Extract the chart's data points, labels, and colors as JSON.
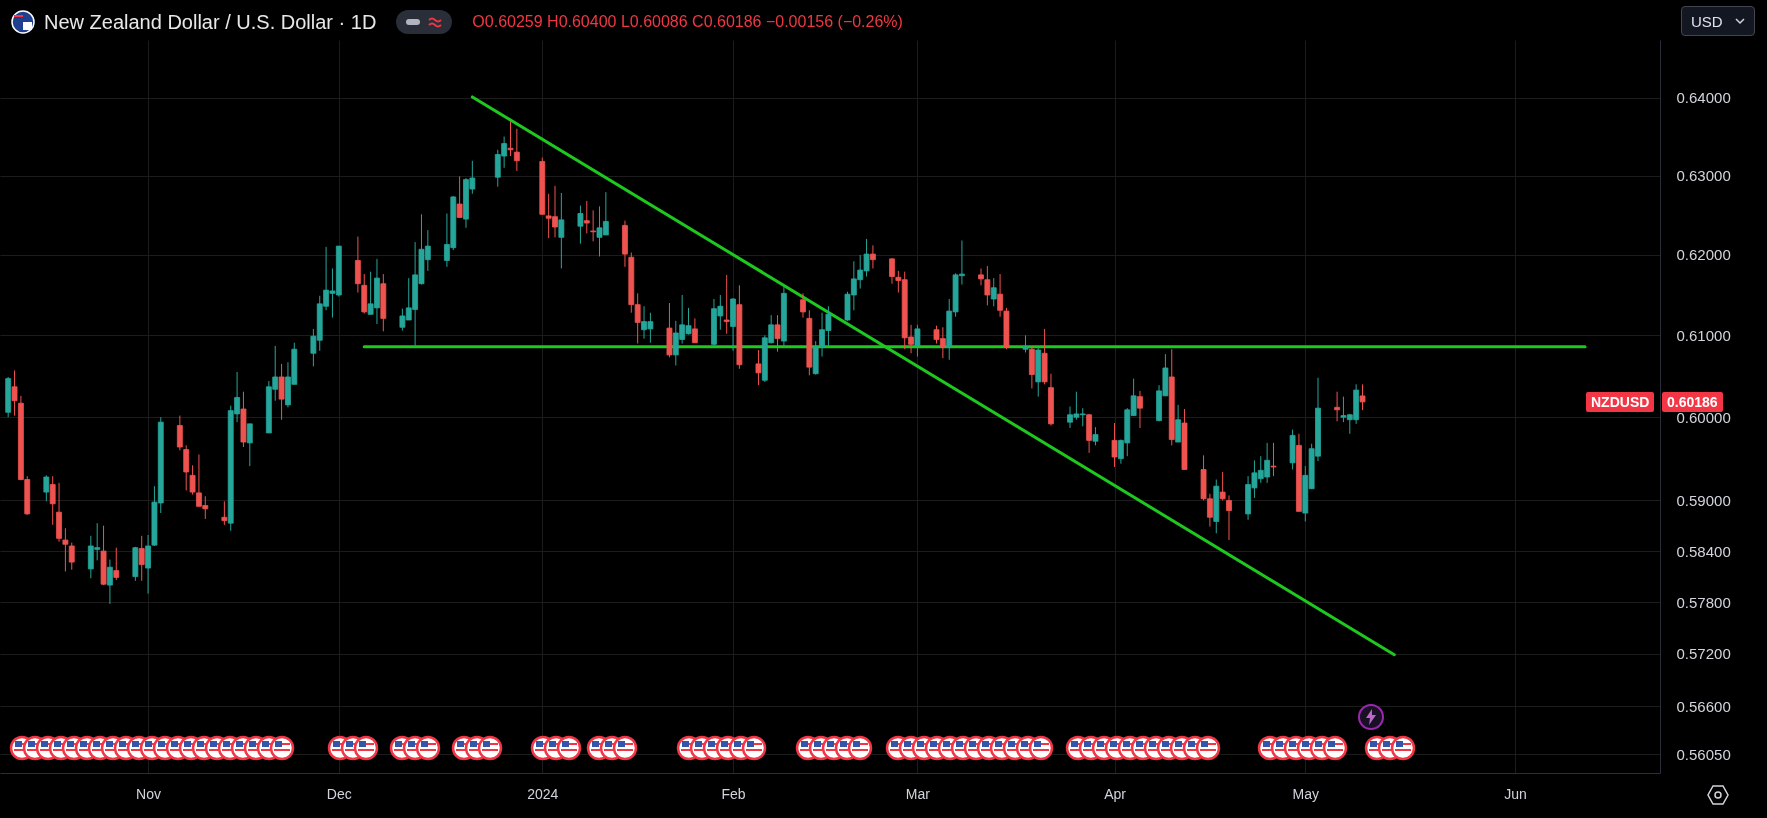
{
  "chart_data": {
    "type": "candlestick",
    "title": "New Zealand Dollar / U.S. Dollar · 1D",
    "subtitle": "O0.60259 H0.60400 L0.60086 C0.60186 −0.00156 (−0.26%)",
    "annotations": [
      "USD",
      "NZDUSD",
      "0.60186"
    ],
    "x": [
      "2023-10-10",
      "2023-10-11",
      "2023-10-12",
      "2023-10-13",
      "2023-10-16",
      "2023-10-17",
      "2023-10-18",
      "2023-10-19",
      "2023-10-20",
      "2023-10-23",
      "2023-10-24",
      "2023-10-25",
      "2023-10-26",
      "2023-10-27",
      "2023-10-30",
      "2023-10-31",
      "2023-11-01",
      "2023-11-02",
      "2023-11-03",
      "2023-11-06",
      "2023-11-07",
      "2023-11-08",
      "2023-11-09",
      "2023-11-10",
      "2023-11-13",
      "2023-11-14",
      "2023-11-15",
      "2023-11-16",
      "2023-11-17",
      "2023-11-20",
      "2023-11-21",
      "2023-11-22",
      "2023-11-23",
      "2023-11-24",
      "2023-11-27",
      "2023-11-28",
      "2023-11-29",
      "2023-11-30",
      "2023-12-01",
      "2023-12-04",
      "2023-12-05",
      "2023-12-06",
      "2023-12-07",
      "2023-12-08",
      "2023-12-11",
      "2023-12-12",
      "2023-12-13",
      "2023-12-14",
      "2023-12-15",
      "2023-12-18",
      "2023-12-19",
      "2023-12-20",
      "2023-12-21",
      "2023-12-22",
      "2023-12-26",
      "2023-12-27",
      "2023-12-28",
      "2023-12-29",
      "2024-01-02",
      "2024-01-03",
      "2024-01-04",
      "2024-01-05",
      "2024-01-08",
      "2024-01-09",
      "2024-01-10",
      "2024-01-11",
      "2024-01-12",
      "2024-01-15",
      "2024-01-16",
      "2024-01-17",
      "2024-01-18",
      "2024-01-19",
      "2024-01-22",
      "2024-01-23",
      "2024-01-24",
      "2024-01-25",
      "2024-01-26",
      "2024-01-29",
      "2024-01-30",
      "2024-01-31",
      "2024-02-01",
      "2024-02-02",
      "2024-02-05",
      "2024-02-06",
      "2024-02-07",
      "2024-02-08",
      "2024-02-09",
      "2024-02-12",
      "2024-02-13",
      "2024-02-14",
      "2024-02-15",
      "2024-02-16",
      "2024-02-19",
      "2024-02-20",
      "2024-02-21",
      "2024-02-22",
      "2024-02-23",
      "2024-02-26",
      "2024-02-27",
      "2024-02-28",
      "2024-02-29",
      "2024-03-01",
      "2024-03-04",
      "2024-03-05",
      "2024-03-06",
      "2024-03-07",
      "2024-03-08",
      "2024-03-11",
      "2024-03-12",
      "2024-03-13",
      "2024-03-14",
      "2024-03-15",
      "2024-03-18",
      "2024-03-19",
      "2024-03-20",
      "2024-03-21",
      "2024-03-22",
      "2024-03-25",
      "2024-03-26",
      "2024-03-27",
      "2024-03-28",
      "2024-03-29",
      "2024-04-01",
      "2024-04-02",
      "2024-04-03",
      "2024-04-04",
      "2024-04-05",
      "2024-04-08",
      "2024-04-09",
      "2024-04-10",
      "2024-04-11",
      "2024-04-12",
      "2024-04-15",
      "2024-04-16",
      "2024-04-17",
      "2024-04-18",
      "2024-04-19",
      "2024-04-22",
      "2024-04-23",
      "2024-04-24",
      "2024-04-25",
      "2024-04-26",
      "2024-04-29",
      "2024-04-30",
      "2024-05-01",
      "2024-05-02",
      "2024-05-03",
      "2024-05-06",
      "2024-05-07",
      "2024-05-08",
      "2024-05-09",
      "2024-05-10"
    ],
    "ohlc": [
      [
        0.6006,
        0.6049,
        0.6,
        0.6047
      ],
      [
        0.6037,
        0.6057,
        0.6002,
        0.602
      ],
      [
        0.6017,
        0.6026,
        0.5924,
        0.5925
      ],
      [
        0.5925,
        0.5929,
        0.5883,
        0.5884
      ],
      [
        0.591,
        0.593,
        0.5899,
        0.5928
      ],
      [
        0.5919,
        0.5929,
        0.5871,
        0.5896
      ],
      [
        0.5886,
        0.5921,
        0.5851,
        0.5855
      ],
      [
        0.5853,
        0.5867,
        0.5816,
        0.5848
      ],
      [
        0.5846,
        0.585,
        0.5818,
        0.5827
      ],
      [
        0.5819,
        0.5858,
        0.5808,
        0.5846
      ],
      [
        0.5842,
        0.5873,
        0.5829,
        0.5844
      ],
      [
        0.584,
        0.587,
        0.58,
        0.5801
      ],
      [
        0.58,
        0.583,
        0.5778,
        0.5821
      ],
      [
        0.5817,
        0.5844,
        0.5806,
        0.5809
      ],
      [
        0.581,
        0.5845,
        0.5805,
        0.5844
      ],
      [
        0.5843,
        0.5858,
        0.5805,
        0.5824
      ],
      [
        0.582,
        0.5859,
        0.579,
        0.5846
      ],
      [
        0.5847,
        0.5917,
        0.5846,
        0.5898
      ],
      [
        0.5897,
        0.6,
        0.5885,
        0.5994
      ],
      [
        0.599,
        0.6002,
        0.596,
        0.5964
      ],
      [
        0.5961,
        0.5966,
        0.5912,
        0.5934
      ],
      [
        0.593,
        0.5942,
        0.5907,
        0.591
      ],
      [
        0.5909,
        0.5955,
        0.5893,
        0.5893
      ],
      [
        0.5894,
        0.5905,
        0.5878,
        0.589
      ],
      [
        0.588,
        0.5899,
        0.5871,
        0.5876
      ],
      [
        0.5873,
        0.6014,
        0.5864,
        0.6008
      ],
      [
        0.6004,
        0.6055,
        0.5994,
        0.6024
      ],
      [
        0.601,
        0.6031,
        0.5964,
        0.597
      ],
      [
        0.5969,
        0.5992,
        0.5941,
        0.5992
      ],
      [
        0.5981,
        0.6044,
        0.5981,
        0.6037
      ],
      [
        0.6034,
        0.6087,
        0.602,
        0.6049
      ],
      [
        0.6049,
        0.6065,
        0.5997,
        0.6022
      ],
      [
        0.6015,
        0.6067,
        0.6012,
        0.6049
      ],
      [
        0.604,
        0.6091,
        0.604,
        0.6083
      ],
      [
        0.6078,
        0.6108,
        0.6062,
        0.6099
      ],
      [
        0.6094,
        0.6149,
        0.6081,
        0.6139
      ],
      [
        0.6136,
        0.621,
        0.6131,
        0.6156
      ],
      [
        0.6152,
        0.6183,
        0.6122,
        0.6155
      ],
      [
        0.615,
        0.6211,
        0.6148,
        0.6211
      ],
      [
        0.6193,
        0.6223,
        0.6153,
        0.6164
      ],
      [
        0.6162,
        0.6176,
        0.6127,
        0.6129
      ],
      [
        0.6126,
        0.6179,
        0.6126,
        0.6139
      ],
      [
        0.6134,
        0.6195,
        0.6114,
        0.6171
      ],
      [
        0.6164,
        0.6176,
        0.6105,
        0.6121
      ],
      [
        0.611,
        0.6133,
        0.6106,
        0.6124
      ],
      [
        0.6119,
        0.6171,
        0.6119,
        0.6134
      ],
      [
        0.6132,
        0.6216,
        0.6086,
        0.6175
      ],
      [
        0.6164,
        0.6251,
        0.6163,
        0.6207
      ],
      [
        0.6194,
        0.6231,
        0.618,
        0.6211
      ],
      [
        0.6193,
        0.6252,
        0.6185,
        0.6213
      ],
      [
        0.6209,
        0.6274,
        0.6206,
        0.6273
      ],
      [
        0.6264,
        0.6299,
        0.6247,
        0.6247
      ],
      [
        0.6245,
        0.6297,
        0.6234,
        0.6295
      ],
      [
        0.6283,
        0.6319,
        0.6277,
        0.6297
      ],
      [
        0.6298,
        0.6333,
        0.6286,
        0.6327
      ],
      [
        0.6325,
        0.635,
        0.631,
        0.6341
      ],
      [
        0.6335,
        0.637,
        0.6325,
        0.6333
      ],
      [
        0.633,
        0.636,
        0.6306,
        0.6319
      ],
      [
        0.6318,
        0.6323,
        0.6251,
        0.6251
      ],
      [
        0.6249,
        0.6277,
        0.6221,
        0.6246
      ],
      [
        0.6248,
        0.6287,
        0.6222,
        0.6235
      ],
      [
        0.6222,
        0.6278,
        0.6183,
        0.6244
      ],
      [
        0.6236,
        0.6262,
        0.6214,
        0.6252
      ],
      [
        0.6243,
        0.6268,
        0.6227,
        0.624
      ],
      [
        0.623,
        0.6256,
        0.6217,
        0.6229
      ],
      [
        0.6222,
        0.6261,
        0.6198,
        0.6234
      ],
      [
        0.6225,
        0.6279,
        0.6225,
        0.6242
      ],
      [
        0.6237,
        0.6243,
        0.6185,
        0.6201
      ],
      [
        0.6197,
        0.6203,
        0.6128,
        0.6138
      ],
      [
        0.6138,
        0.6152,
        0.609,
        0.6116
      ],
      [
        0.6107,
        0.6136,
        0.6096,
        0.6117
      ],
      [
        0.6108,
        0.6128,
        0.6091,
        0.6117
      ],
      [
        0.6109,
        0.614,
        0.6073,
        0.6076
      ],
      [
        0.6076,
        0.6118,
        0.6063,
        0.6103
      ],
      [
        0.6095,
        0.615,
        0.609,
        0.6113
      ],
      [
        0.6102,
        0.6134,
        0.6101,
        0.6112
      ],
      [
        0.6108,
        0.6121,
        0.6091,
        0.6091
      ],
      [
        0.6089,
        0.6145,
        0.6087,
        0.6133
      ],
      [
        0.6124,
        0.615,
        0.6107,
        0.6136
      ],
      [
        0.6119,
        0.6175,
        0.6102,
        0.6117
      ],
      [
        0.6111,
        0.6146,
        0.6081,
        0.6145
      ],
      [
        0.6138,
        0.6162,
        0.6059,
        0.6064
      ],
      [
        0.6065,
        0.6082,
        0.6039,
        0.6054
      ],
      [
        0.6045,
        0.61,
        0.6043,
        0.6097
      ],
      [
        0.6091,
        0.6125,
        0.609,
        0.6113
      ],
      [
        0.6113,
        0.6125,
        0.608,
        0.6096
      ],
      [
        0.6093,
        0.616,
        0.6086,
        0.6152
      ],
      [
        0.6144,
        0.6152,
        0.6122,
        0.6129
      ],
      [
        0.6121,
        0.6131,
        0.6051,
        0.6061
      ],
      [
        0.6053,
        0.6093,
        0.6052,
        0.6086
      ],
      [
        0.6086,
        0.6128,
        0.6074,
        0.6107
      ],
      [
        0.6106,
        0.6136,
        0.6087,
        0.6126
      ],
      [
        0.6119,
        0.6154,
        0.6118,
        0.6151
      ],
      [
        0.615,
        0.6192,
        0.6131,
        0.617
      ],
      [
        0.6169,
        0.62,
        0.6158,
        0.6181
      ],
      [
        0.618,
        0.622,
        0.6173,
        0.6201
      ],
      [
        0.6201,
        0.6212,
        0.6183,
        0.6194
      ],
      [
        0.6195,
        0.6196,
        0.6164,
        0.6173
      ],
      [
        0.6172,
        0.618,
        0.6153,
        0.6168
      ],
      [
        0.6169,
        0.6179,
        0.6083,
        0.6097
      ],
      [
        0.6098,
        0.6113,
        0.6078,
        0.6089
      ],
      [
        0.6087,
        0.6113,
        0.6074,
        0.6108
      ],
      [
        0.6107,
        0.6112,
        0.609,
        0.6095
      ],
      [
        0.6096,
        0.611,
        0.6072,
        0.6086
      ],
      [
        0.6086,
        0.6145,
        0.607,
        0.613
      ],
      [
        0.6129,
        0.6177,
        0.6123,
        0.6175
      ],
      [
        0.6174,
        0.6218,
        0.6163,
        0.6176
      ],
      [
        0.6175,
        0.6183,
        0.6162,
        0.617
      ],
      [
        0.6169,
        0.6186,
        0.6137,
        0.615
      ],
      [
        0.6145,
        0.6171,
        0.6136,
        0.6159
      ],
      [
        0.6151,
        0.6176,
        0.6123,
        0.6131
      ],
      [
        0.613,
        0.6134,
        0.6083,
        0.6085
      ],
      [
        0.6083,
        0.61,
        0.6079,
        0.6086
      ],
      [
        0.6083,
        0.6087,
        0.6035,
        0.6052
      ],
      [
        0.6043,
        0.6085,
        0.6025,
        0.6082
      ],
      [
        0.6078,
        0.6108,
        0.604,
        0.6043
      ],
      [
        0.6036,
        0.6053,
        0.599,
        0.5992
      ],
      [
        0.5994,
        0.6013,
        0.5987,
        0.6003
      ],
      [
        0.6,
        0.6031,
        0.5997,
        0.6004
      ],
      [
        0.6003,
        0.6011,
        0.5989,
        0.6004
      ],
      [
        0.6003,
        0.6004,
        0.5957,
        0.5972
      ],
      [
        0.5971,
        0.5988,
        0.5966,
        0.5979
      ],
      [
        0.5972,
        0.5993,
        0.594,
        0.5952
      ],
      [
        0.595,
        0.5973,
        0.5944,
        0.5972
      ],
      [
        0.5969,
        0.6011,
        0.5953,
        0.6009
      ],
      [
        0.6002,
        0.6047,
        0.6002,
        0.6026
      ],
      [
        0.6025,
        0.6032,
        0.5987,
        0.6011
      ],
      [
        0.5996,
        0.6039,
        0.5995,
        0.6032
      ],
      [
        0.6026,
        0.6077,
        0.6026,
        0.606
      ],
      [
        0.6049,
        0.6083,
        0.5966,
        0.5973
      ],
      [
        0.597,
        0.6015,
        0.597,
        0.5997
      ],
      [
        0.5993,
        0.601,
        0.5937,
        0.5937
      ],
      [
        0.5937,
        0.5954,
        0.59,
        0.5902
      ],
      [
        0.5902,
        0.5908,
        0.5869,
        0.588
      ],
      [
        0.5875,
        0.5925,
        0.5861,
        0.5917
      ],
      [
        0.591,
        0.5934,
        0.59,
        0.5902
      ],
      [
        0.59,
        0.5906,
        0.5853,
        0.5888
      ],
      [
        0.5884,
        0.5929,
        0.5877,
        0.5919
      ],
      [
        0.5915,
        0.5948,
        0.5903,
        0.5933
      ],
      [
        0.5926,
        0.5953,
        0.5921,
        0.5936
      ],
      [
        0.5928,
        0.5969,
        0.5921,
        0.5948
      ],
      [
        0.5941,
        0.5969,
        0.5929,
        0.594
      ],
      [
        0.5945,
        0.5985,
        0.5937,
        0.5978
      ],
      [
        0.5966,
        0.598,
        0.5887,
        0.5887
      ],
      [
        0.5885,
        0.5941,
        0.5875,
        0.593
      ],
      [
        0.5914,
        0.5968,
        0.5914,
        0.5962
      ],
      [
        0.5953,
        0.6048,
        0.5947,
        0.6011
      ],
      [
        0.6012,
        0.6031,
        0.5995,
        0.6009
      ],
      [
        0.6,
        0.6025,
        0.5994,
        0.6002
      ],
      [
        0.5997,
        0.6004,
        0.598,
        0.6003
      ],
      [
        0.5997,
        0.604,
        0.5992,
        0.6033
      ],
      [
        0.60259,
        0.604,
        0.60086,
        0.60186
      ]
    ],
    "colors": [
      "#26a69a",
      "#ef5350",
      "#ef5350",
      "#ef5350",
      "#26a69a",
      "#ef5350",
      "#ef5350",
      "#ef5350",
      "#ef5350",
      "#26a69a",
      "#26a69a",
      "#ef5350",
      "#26a69a",
      "#ef5350",
      "#26a69a",
      "#ef5350",
      "#26a69a",
      "#26a69a",
      "#26a69a",
      "#ef5350",
      "#ef5350",
      "#ef5350",
      "#ef5350",
      "#ef5350",
      "#ef5350",
      "#26a69a",
      "#26a69a",
      "#ef5350",
      "#26a69a",
      "#26a69a",
      "#26a69a",
      "#ef5350",
      "#26a69a",
      "#26a69a",
      "#26a69a",
      "#26a69a",
      "#26a69a",
      "#26a69a",
      "#26a69a",
      "#ef5350",
      "#ef5350",
      "#26a69a",
      "#26a69a",
      "#ef5350",
      "#26a69a",
      "#26a69a",
      "#26a69a",
      "#26a69a",
      "#26a69a",
      "#26a69a",
      "#26a69a",
      "#ef5350",
      "#26a69a",
      "#26a69a",
      "#26a69a",
      "#26a69a",
      "#ef5350",
      "#ef5350",
      "#ef5350",
      "#ef5350",
      "#ef5350",
      "#26a69a",
      "#26a69a",
      "#ef5350",
      "#ef5350",
      "#26a69a",
      "#26a69a",
      "#ef5350",
      "#ef5350",
      "#ef5350",
      "#26a69a",
      "#26a69a",
      "#ef5350",
      "#26a69a",
      "#26a69a",
      "#26a69a",
      "#ef5350",
      "#26a69a",
      "#26a69a",
      "#ef5350",
      "#26a69a",
      "#ef5350",
      "#ef5350",
      "#26a69a",
      "#26a69a",
      "#ef5350",
      "#26a69a",
      "#ef5350",
      "#ef5350",
      "#26a69a",
      "#26a69a",
      "#26a69a",
      "#26a69a",
      "#26a69a",
      "#26a69a",
      "#26a69a",
      "#ef5350",
      "#ef5350",
      "#ef5350",
      "#ef5350",
      "#ef5350",
      "#26a69a",
      "#ef5350",
      "#ef5350",
      "#26a69a",
      "#26a69a",
      "#26a69a",
      "#ef5350",
      "#ef5350",
      "#26a69a",
      "#ef5350",
      "#ef5350",
      "#26a69a",
      "#ef5350",
      "#26a69a",
      "#ef5350",
      "#ef5350",
      "#26a69a",
      "#26a69a",
      "#26a69a",
      "#ef5350",
      "#26a69a",
      "#ef5350",
      "#26a69a",
      "#26a69a",
      "#26a69a",
      "#ef5350",
      "#26a69a",
      "#26a69a",
      "#ef5350",
      "#26a69a",
      "#ef5350",
      "#ef5350",
      "#ef5350",
      "#26a69a",
      "#ef5350",
      "#ef5350",
      "#26a69a",
      "#26a69a",
      "#26a69a",
      "#26a69a",
      "#ef5350",
      "#26a69a",
      "#ef5350",
      "#26a69a",
      "#26a69a",
      "#26a69a",
      "#ef5350",
      "#26a69a",
      "#26a69a",
      "#26a69a",
      "#ef5350"
    ],
    "series": [
      {
        "type": "line",
        "x": [
          "2023-12-05",
          "2024-06-14"
        ],
        "values": [
          0.6086,
          0.6086
        ],
        "color": "#1ec81e"
      },
      {
        "type": "line",
        "x": [
          "2023-12-22",
          "2024-05-15"
        ],
        "values": [
          0.6401,
          0.5719
        ],
        "color": "#1ec81e"
      }
    ],
    "xlim": [
      "2023-10-09T12:00",
      "2024-06-25"
    ],
    "xticks": [
      {
        "value": "2023-11-01",
        "label": "Nov"
      },
      {
        "value": "2023-12-01",
        "label": "Dec"
      },
      {
        "value": "2024-01-02",
        "label": "2024"
      },
      {
        "value": "2024-02-01",
        "label": "Feb"
      },
      {
        "value": "2024-03-01",
        "label": "Mar"
      },
      {
        "value": "2024-04-01",
        "label": "Apr"
      },
      {
        "value": "2024-05-01",
        "label": "May"
      },
      {
        "value": "2024-06-03",
        "label": "Jun"
      }
    ],
    "ylim": [
      0.5584,
      0.6475
    ],
    "yticks": [
      {
        "value": 0.64,
        "label": "0.64000"
      },
      {
        "value": 0.63,
        "label": "0.63000"
      },
      {
        "value": 0.62,
        "label": "0.62000"
      },
      {
        "value": 0.61,
        "label": "0.61000"
      },
      {
        "value": 0.6,
        "label": "0.60000"
      },
      {
        "value": 0.59,
        "label": "0.59000"
      },
      {
        "value": 0.584,
        "label": "0.58400"
      },
      {
        "value": 0.578,
        "label": "0.57800"
      },
      {
        "value": 0.572,
        "label": "0.57200"
      },
      {
        "value": 0.566,
        "label": "0.56600"
      },
      {
        "value": 0.5605,
        "label": "0.56050"
      }
    ],
    "log": "y",
    "grid": true
  }
}
